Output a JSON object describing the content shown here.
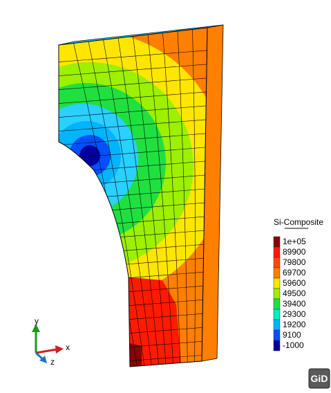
{
  "legend": {
    "title": "Si-Composite",
    "entries": [
      {
        "label": "1e+05",
        "color": "#8b0000"
      },
      {
        "label": "89900",
        "color": "#ff1a00"
      },
      {
        "label": "79800",
        "color": "#ff4a00"
      },
      {
        "label": "69700",
        "color": "#ff7f00"
      },
      {
        "label": "59600",
        "color": "#ffe600"
      },
      {
        "label": "49500",
        "color": "#9cf000"
      },
      {
        "label": "39400",
        "color": "#20e040"
      },
      {
        "label": "29300",
        "color": "#00f0c0"
      },
      {
        "label": "19200",
        "color": "#00b4ff"
      },
      {
        "label": "9100",
        "color": "#0050ff"
      },
      {
        "label": "-1000",
        "color": "#0000a0"
      }
    ]
  },
  "axes": {
    "x": "x",
    "y": "y",
    "z": "z"
  },
  "logo": "GiD"
}
